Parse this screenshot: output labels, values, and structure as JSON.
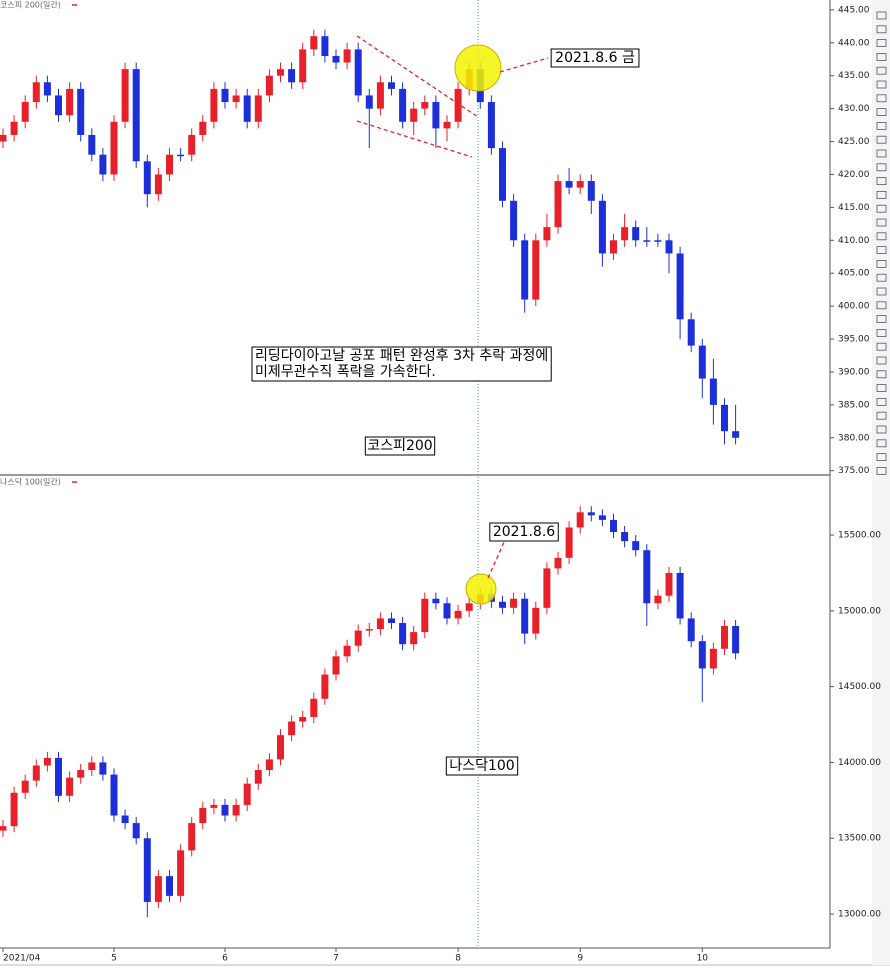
{
  "chart_data": [
    {
      "type": "candlestick",
      "title": "코스피 200(일간)",
      "up_color": "#e8202a",
      "down_color": "#1c2fd8",
      "open": [
        425,
        426,
        428,
        431,
        434,
        432,
        429,
        433,
        426,
        423,
        420,
        428,
        436,
        422,
        417,
        420,
        423,
        423,
        426,
        428,
        433,
        431,
        432,
        428,
        432,
        435,
        436,
        434,
        439,
        441,
        438,
        437,
        439,
        432,
        430,
        434,
        433,
        428,
        430,
        431,
        427,
        428,
        433,
        436,
        431,
        424,
        416,
        410,
        401,
        410,
        412,
        419,
        418,
        419,
        416,
        408,
        410,
        412,
        410,
        410,
        410,
        408,
        398,
        394,
        389,
        385,
        381
      ],
      "high": [
        427,
        429,
        432,
        435,
        435,
        433,
        434,
        434,
        427,
        424,
        429,
        437,
        437,
        423,
        421,
        424,
        424,
        427,
        429,
        434,
        434,
        433,
        433,
        433,
        436,
        437,
        437,
        440,
        442,
        442,
        439,
        440,
        440,
        433,
        435,
        435,
        434,
        431,
        432,
        432,
        429,
        434,
        437,
        437,
        432,
        425,
        417,
        411,
        411,
        414,
        420,
        421,
        420,
        420,
        417,
        411,
        414,
        413,
        412,
        411,
        411,
        409,
        399,
        395,
        392,
        386,
        385
      ],
      "low": [
        424,
        425,
        427,
        430,
        431,
        428,
        428,
        425,
        422,
        419,
        419,
        427,
        421,
        415,
        416,
        419,
        422,
        422,
        425,
        427,
        430,
        430,
        427,
        427,
        431,
        434,
        433,
        433,
        438,
        437,
        436,
        436,
        431,
        424,
        429,
        432,
        427,
        426,
        429,
        424,
        425,
        427,
        432,
        430,
        423,
        415,
        409,
        399,
        400,
        409,
        411,
        417,
        417,
        414,
        406,
        407,
        409,
        409,
        409,
        409,
        405,
        395,
        393,
        386,
        382,
        379,
        379
      ],
      "close": [
        426,
        428,
        431,
        434,
        432,
        429,
        433,
        426,
        423,
        420,
        428,
        436,
        422,
        417,
        420,
        423,
        423,
        426,
        428,
        433,
        431,
        432,
        428,
        432,
        435,
        436,
        434,
        439,
        441,
        438,
        437,
        439,
        432,
        430,
        434,
        433,
        428,
        430,
        431,
        427,
        428,
        433,
        436,
        431,
        424,
        416,
        410,
        401,
        410,
        412,
        419,
        418,
        419,
        416,
        408,
        410,
        412,
        410,
        410,
        410,
        408,
        398,
        394,
        389,
        385,
        381,
        380
      ],
      "ylim": [
        374.5,
        446.5
      ],
      "yticks": [
        {
          "value": 375,
          "label": "375.00"
        },
        {
          "value": 380,
          "label": "380.00"
        },
        {
          "value": 385,
          "label": "385.00"
        },
        {
          "value": 390,
          "label": "390.00"
        },
        {
          "value": 395,
          "label": "395.00"
        },
        {
          "value": 400,
          "label": "400.00"
        },
        {
          "value": 405,
          "label": "405.00"
        },
        {
          "value": 410,
          "label": "410.00"
        },
        {
          "value": 415,
          "label": "415.00"
        },
        {
          "value": 420,
          "label": "420.00"
        },
        {
          "value": 425,
          "label": "425.00"
        },
        {
          "value": 430,
          "label": "430.00"
        },
        {
          "value": 435,
          "label": "435.00"
        },
        {
          "value": 440,
          "label": "440.00"
        },
        {
          "value": 445,
          "label": "445.00"
        }
      ],
      "annotations": [
        "2021.8.6 금",
        "리딩다이아고날 공포 패턴 완성후 3차 추락 과정에",
        "미제무관수직 폭락을 가속한다.",
        "코스피200"
      ]
    },
    {
      "type": "candlestick",
      "title": "나스닥 100(일간)",
      "up_color": "#e8202a",
      "down_color": "#1c2fd8",
      "categories": [
        "2021/04",
        null,
        null,
        null,
        null,
        null,
        null,
        null,
        null,
        null,
        "5",
        null,
        null,
        null,
        null,
        null,
        null,
        null,
        null,
        null,
        "6",
        null,
        null,
        null,
        null,
        null,
        null,
        null,
        null,
        null,
        "7",
        null,
        null,
        null,
        null,
        null,
        null,
        null,
        null,
        null,
        null,
        "8",
        null,
        null,
        null,
        null,
        null,
        null,
        null,
        null,
        null,
        null,
        "9",
        null,
        null,
        null,
        null,
        null,
        null,
        null,
        null,
        null,
        null,
        "10",
        null,
        null,
        null
      ],
      "open": [
        13550,
        13580,
        13800,
        13880,
        13980,
        14030,
        13780,
        13900,
        13950,
        14000,
        13920,
        13650,
        13600,
        13500,
        13080,
        13250,
        13120,
        13420,
        13600,
        13700,
        13720,
        13650,
        13720,
        13860,
        13950,
        14020,
        14180,
        14270,
        14300,
        14420,
        14580,
        14700,
        14770,
        14870,
        14880,
        14950,
        14920,
        14780,
        14860,
        15080,
        15050,
        14950,
        15000,
        15050,
        15110,
        15060,
        15020,
        15080,
        14850,
        15020,
        15280,
        15350,
        15550,
        15650,
        15630,
        15600,
        15520,
        15460,
        15400,
        15050,
        15100,
        15250,
        14950,
        14800,
        14620,
        14750,
        14900
      ],
      "high": [
        13620,
        13840,
        13920,
        14020,
        14070,
        14070,
        13940,
        13990,
        14040,
        14040,
        13960,
        13690,
        13640,
        13540,
        13290,
        13290,
        13460,
        13640,
        13740,
        13760,
        13760,
        13760,
        13900,
        13990,
        14060,
        14220,
        14310,
        14340,
        14460,
        14620,
        14740,
        14810,
        14910,
        14920,
        14990,
        14990,
        14960,
        14900,
        15120,
        15120,
        15090,
        15040,
        15090,
        15150,
        15150,
        15100,
        15120,
        15120,
        15060,
        15320,
        15390,
        15590,
        15690,
        15690,
        15670,
        15640,
        15560,
        15500,
        15440,
        15140,
        15290,
        15290,
        14990,
        14840,
        14790,
        14940,
        14940
      ],
      "low": [
        13510,
        13540,
        13760,
        13840,
        13940,
        13740,
        13740,
        13860,
        13910,
        13880,
        13610,
        13560,
        13460,
        12980,
        13040,
        13080,
        13080,
        13380,
        13560,
        13660,
        13610,
        13610,
        13680,
        13820,
        13910,
        13980,
        14140,
        14230,
        14260,
        14380,
        14540,
        14660,
        14730,
        14830,
        14840,
        14880,
        14740,
        14740,
        14820,
        15010,
        14910,
        14910,
        14960,
        15010,
        15020,
        14980,
        14980,
        14780,
        14810,
        14980,
        15240,
        15310,
        15510,
        15590,
        15560,
        15480,
        15420,
        15360,
        14900,
        15010,
        15060,
        14910,
        14760,
        14400,
        14580,
        14710,
        14680
      ],
      "close": [
        13580,
        13800,
        13880,
        13980,
        14030,
        13780,
        13900,
        13950,
        14000,
        13920,
        13650,
        13600,
        13500,
        13080,
        13250,
        13120,
        13420,
        13600,
        13700,
        13720,
        13650,
        13720,
        13860,
        13950,
        14020,
        14180,
        14270,
        14300,
        14420,
        14580,
        14700,
        14770,
        14870,
        14880,
        14950,
        14920,
        14780,
        14860,
        15080,
        15050,
        14950,
        15000,
        15050,
        15110,
        15060,
        15020,
        15080,
        14850,
        15020,
        15280,
        15350,
        15550,
        15650,
        15630,
        15600,
        15520,
        15460,
        15400,
        15050,
        15100,
        15250,
        14950,
        14800,
        14620,
        14750,
        14900,
        14720
      ],
      "ylim": [
        12776,
        15883
      ],
      "yticks": [
        {
          "value": 13000,
          "label": "13000.00"
        },
        {
          "value": 13500,
          "label": "13500.00"
        },
        {
          "value": 14000,
          "label": "14000.00"
        },
        {
          "value": 14500,
          "label": "14500.00"
        },
        {
          "value": 15000,
          "label": "15000.00"
        },
        {
          "value": 15500,
          "label": "15500.00"
        }
      ],
      "annotations": [
        "2021.8.6",
        "나스닥100"
      ]
    }
  ]
}
